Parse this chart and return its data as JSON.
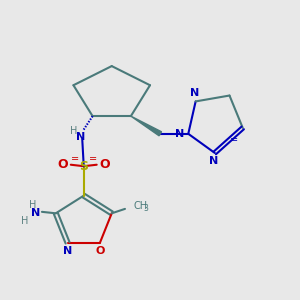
{
  "bg_color": "#e8e8e8",
  "bond_color": "#4a7a7a",
  "bond_lw": 1.5,
  "n_color": "#0000bb",
  "o_color": "#cc0000",
  "s_color": "#aaaa00",
  "text_gray": "#5a8080",
  "figsize": [
    3.0,
    3.0
  ],
  "dpi": 100,
  "xlim": [
    0,
    10
  ],
  "ylim": [
    0,
    10
  ]
}
